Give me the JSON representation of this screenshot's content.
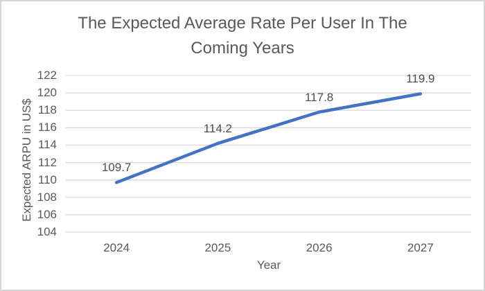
{
  "chart": {
    "title_lines": [
      "The Expected Average Rate Per User In The",
      "Coming Years"
    ]
  },
  "chart_data": {
    "type": "line",
    "title": "The Expected Average Rate Per User In The Coming Years",
    "categories": [
      "2024",
      "2025",
      "2026",
      "2027"
    ],
    "values": [
      109.7,
      114.2,
      117.8,
      119.9
    ],
    "data_labels": [
      "109.7",
      "114.2",
      "117.8",
      "119.9"
    ],
    "xlabel": "Year",
    "ylabel": "Expected ARPU in US$",
    "ylim": [
      104,
      122
    ],
    "yticks": [
      104,
      106,
      108,
      110,
      112,
      114,
      116,
      118,
      120,
      122
    ],
    "grid": "horizontal",
    "legend": "none",
    "colors": {
      "line": "#4472C4",
      "gridline": "#D9D9D9",
      "text": "#595959",
      "frame_border": "#D6D6D6",
      "background": "#FFFFFF"
    }
  }
}
